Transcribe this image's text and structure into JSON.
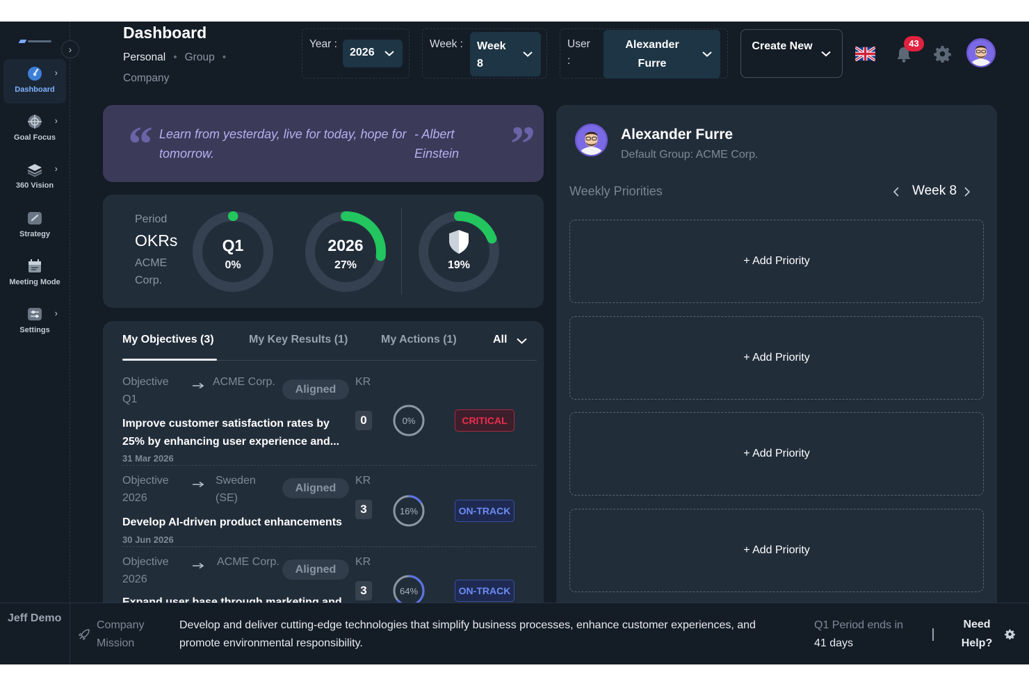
{
  "sidebar": {
    "items": [
      {
        "label": "Dashboard",
        "icon": "gauge-icon"
      },
      {
        "label": "Goal Focus",
        "icon": "target-icon"
      },
      {
        "label": "360 Vision",
        "icon": "layers-icon"
      },
      {
        "label": "Strategy",
        "icon": "strategy-icon"
      },
      {
        "label": "Meeting Mode",
        "icon": "calendar-icon"
      },
      {
        "label": "Settings",
        "icon": "sliders-icon"
      }
    ],
    "user": "Jeff Demo"
  },
  "header": {
    "title": "Dashboard",
    "tabs": [
      "Personal",
      "Group",
      "Company"
    ],
    "filters": {
      "year": {
        "label": "Year :",
        "value": "2026"
      },
      "week": {
        "label": "Week :",
        "value": "Week 8"
      },
      "user": {
        "label": "User :",
        "value": "Alexander Furre"
      }
    },
    "create_label": "Create New",
    "notification_count": "43"
  },
  "quote": {
    "text": "Learn from yesterday, live for today, hope for tomorrow.",
    "author": "- Albert Einstein"
  },
  "okr": {
    "period_label": "Period",
    "title": "OKRs",
    "org": "ACME Corp.",
    "rings": [
      {
        "label": "Q1",
        "value": "0%",
        "fraction": 0.0
      },
      {
        "label": "2026",
        "value": "27%",
        "fraction": 0.27
      },
      {
        "label": "",
        "icon": "shield-icon",
        "value": "19%",
        "fraction": 0.19
      }
    ]
  },
  "objectives": {
    "tabs": [
      "My Objectives (3)",
      "My Key Results (1)",
      "My Actions (1)"
    ],
    "filter": "All",
    "kr_header": "KR",
    "rows": [
      {
        "level": "Objective Q1",
        "org": "ACME Corp.",
        "aligned": "Aligned",
        "name": "Improve customer satisfaction rates by 25% by enhancing user experience and...",
        "date": "31 Mar 2026",
        "kr": "0",
        "progress": "0%",
        "progress_fraction": 0.0,
        "status": "CRITICAL"
      },
      {
        "level": "Objective 2026",
        "org": "Sweden (SE)",
        "aligned": "Aligned",
        "name": "Develop AI-driven product enhancements",
        "date": "30 Jun 2026",
        "kr": "3",
        "progress": "16%",
        "progress_fraction": 0.16,
        "status": "ON-TRACK"
      },
      {
        "level": "Objective 2026",
        "org": "ACME Corp.",
        "aligned": "Aligned",
        "name": "Expand user base through marketing and...",
        "date": "",
        "kr": "3",
        "progress": "64%",
        "progress_fraction": 0.64,
        "status": "ON-TRACK"
      }
    ]
  },
  "profile": {
    "name": "Alexander Furre",
    "group": "Default Group: ACME Corp.",
    "weekly_title": "Weekly Priorities",
    "week": "Week 8",
    "add_label": "+ Add Priority"
  },
  "footer": {
    "mission_label": "Company Mission",
    "mission": "Develop and deliver cutting-edge technologies that simplify business processes, enhance customer experiences, and promote environmental responsibility.",
    "period_text": "Q1 Period ends in",
    "days": "41 days",
    "help": "Need Help?"
  },
  "colors": {
    "background": "#141c26",
    "card": "#222d3a",
    "accent_green": "#22c55e",
    "critical": "#ec2d4f",
    "on_track": "#6d8cf5",
    "quote_bg": "#3b3a59"
  }
}
